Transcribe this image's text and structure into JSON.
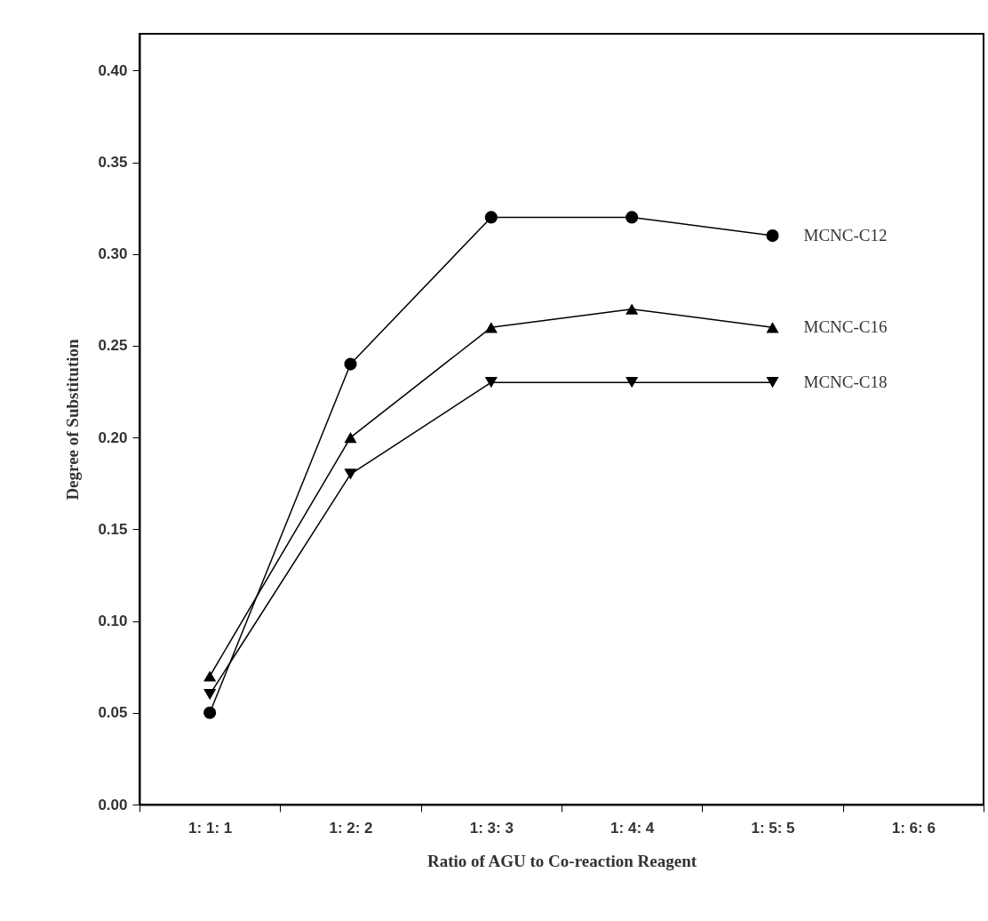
{
  "chart_data": {
    "type": "line",
    "xlabel": "Ratio of AGU to Co-reaction Reagent",
    "ylabel": "Degree of Substitution",
    "categories": [
      "1: 1: 1",
      "1: 2: 2",
      "1: 3: 3",
      "1: 4: 4",
      "1: 5: 5",
      "1: 6: 6"
    ],
    "series": [
      {
        "name": "MCNC-C12",
        "color": "#000000",
        "marker": "circle",
        "values": [
          0.05,
          0.24,
          0.32,
          0.32,
          0.31,
          null
        ]
      },
      {
        "name": "MCNC-C16",
        "color": "#000000",
        "marker": "triangle",
        "values": [
          0.07,
          0.2,
          0.26,
          0.27,
          0.26,
          null
        ]
      },
      {
        "name": "MCNC-C18",
        "color": "#000000",
        "marker": "triangle-down",
        "values": [
          0.06,
          0.18,
          0.23,
          0.23,
          0.23,
          null
        ]
      }
    ],
    "ylim": [
      0,
      0.42
    ],
    "yticks": [
      {
        "value": 0,
        "label": "0.00"
      },
      0.05,
      {
        "value": 0.1,
        "label": "0.10"
      },
      0.15,
      {
        "value": 0.2,
        "label": "0.20"
      },
      0.25,
      {
        "value": 0.3,
        "label": "0.30"
      },
      0.35,
      {
        "value": 0.4,
        "label": "0.40"
      }
    ],
    "grid": false,
    "legend": false
  }
}
